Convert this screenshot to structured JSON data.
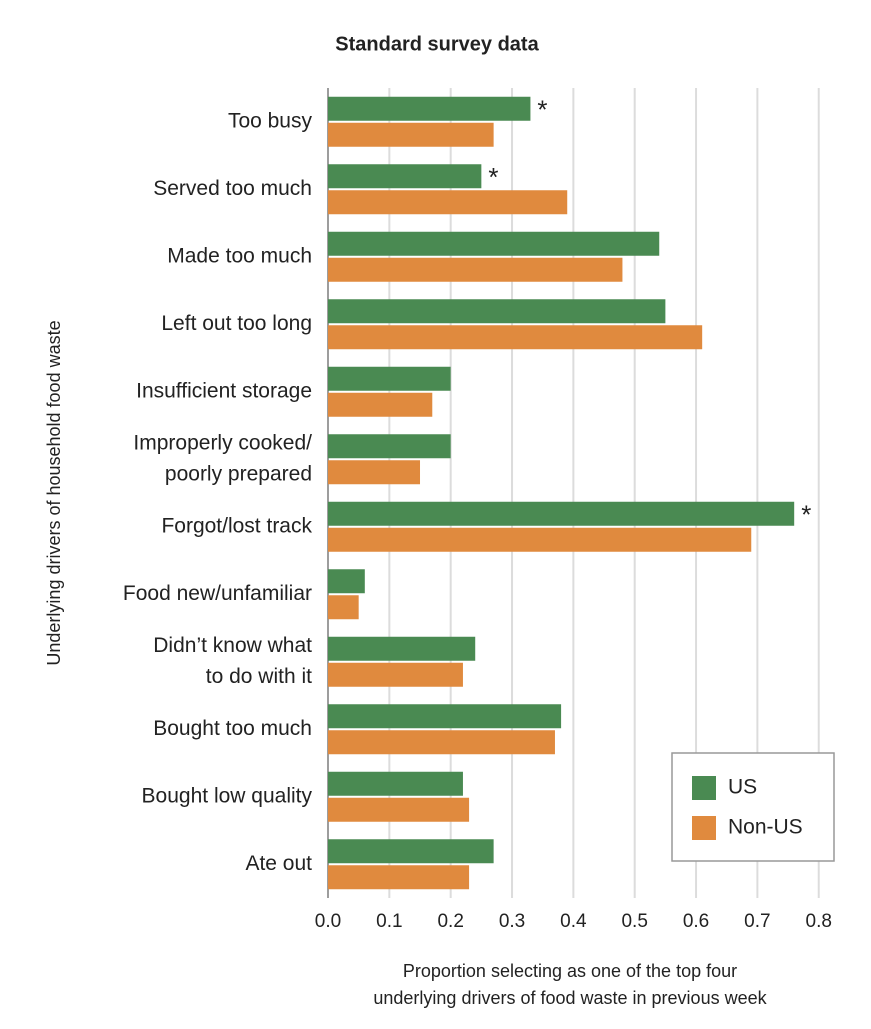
{
  "chart_data": {
    "type": "bar",
    "orientation": "horizontal",
    "title": "Standard survey data",
    "xlabel": [
      "Proportion selecting as one of the top four",
      "underlying drivers of food waste in previous week"
    ],
    "ylabel": "Underlying drivers of household food waste",
    "categories": [
      "Too busy",
      "Served too much",
      "Made too much",
      "Left out too long",
      "Insufficient storage",
      [
        "Improperly cooked/",
        "poorly prepared"
      ],
      "Forgot/lost track",
      "Food new/unfamiliar",
      [
        "Didn’t know what",
        "to do with it"
      ],
      "Bought too much",
      "Bought low quality",
      "Ate out"
    ],
    "series": [
      {
        "name": "US",
        "color": "#4a8a52",
        "values": [
          0.33,
          0.25,
          0.54,
          0.55,
          0.2,
          0.2,
          0.76,
          0.06,
          0.24,
          0.38,
          0.22,
          0.27
        ],
        "notes": [
          "*",
          "*",
          null,
          null,
          null,
          null,
          "*",
          null,
          null,
          null,
          null,
          null
        ]
      },
      {
        "name": "Non-US",
        "color": "#e08a3e",
        "values": [
          0.27,
          0.39,
          0.48,
          0.61,
          0.17,
          0.15,
          0.69,
          0.05,
          0.22,
          0.37,
          0.23,
          0.23
        ]
      }
    ],
    "xlim": [
      0,
      0.82
    ],
    "xticks": [
      {
        "value": 0,
        "label": "0.0"
      },
      0.1,
      0.2,
      0.3,
      0.4,
      0.5,
      0.6,
      0.7,
      0.8
    ],
    "grid": true,
    "legend": "lower right"
  }
}
